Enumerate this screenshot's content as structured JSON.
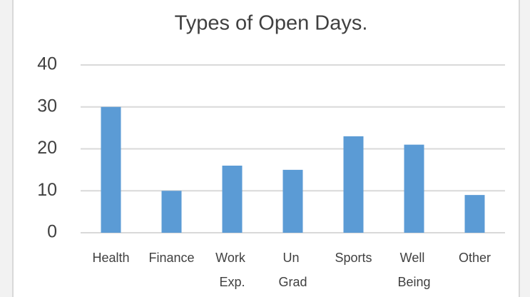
{
  "chart_data": {
    "type": "bar",
    "title": "Types of Open Days.",
    "categories": [
      "Health",
      "Finance",
      "Work Exp.",
      "Un Grad",
      "Sports",
      "Well Being",
      "Other"
    ],
    "values": [
      30,
      10,
      16,
      15,
      23,
      21,
      9
    ],
    "color": "#5b9bd5",
    "ylim": [
      0,
      40
    ],
    "yticks": [
      0,
      10,
      20,
      30,
      40
    ],
    "grid": true
  }
}
